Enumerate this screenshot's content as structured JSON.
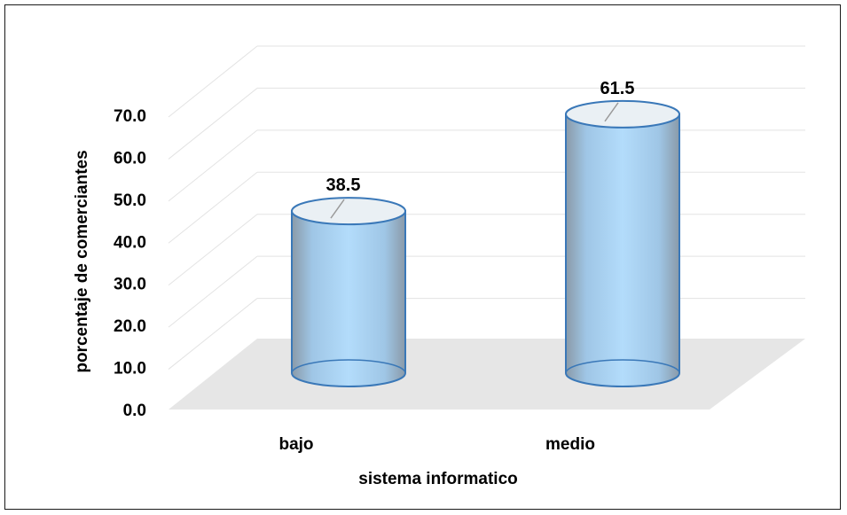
{
  "chart_data": {
    "type": "bar",
    "style": "3d-cylinder",
    "categories": [
      "bajo",
      "medio"
    ],
    "series": [
      {
        "values": [
          38.5,
          61.5
        ]
      }
    ],
    "data_labels": [
      "38.5",
      "61.5"
    ],
    "xlabel": "sistema informatico",
    "ylabel": "porcentaje de comerciantes",
    "yticks": [
      "0.0",
      "10.0",
      "20.0",
      "30.0",
      "40.0",
      "50.0",
      "60.0",
      "70.0"
    ],
    "ylim": [
      0,
      70
    ],
    "grid": true,
    "legend": "none",
    "colors": {
      "bar_fill": "#9fd0f5",
      "bar_edge": "#3a78b8",
      "cap_fill": "#eaf0f4",
      "grid": "#e3e3e3",
      "floor": "#e6e6e6"
    }
  }
}
